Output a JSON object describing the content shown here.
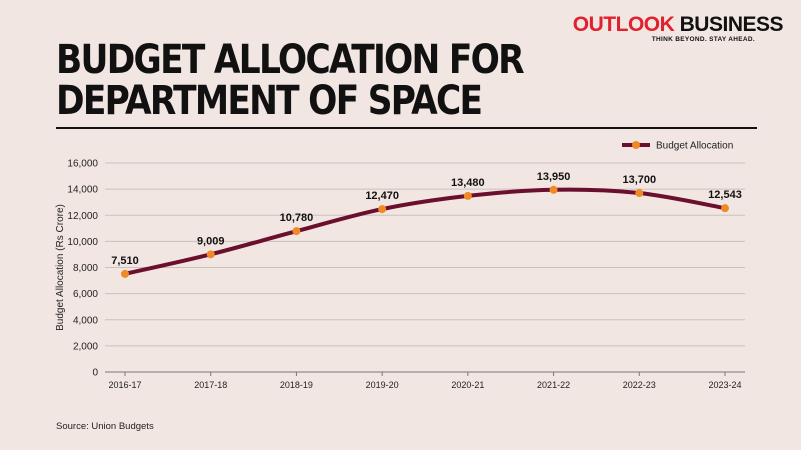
{
  "brand": {
    "name_part1": "OUTLOOK",
    "name_part2": "BUSINESS",
    "tagline": "THINK BEYOND. STAY AHEAD."
  },
  "title_line1": "BUDGET ALLOCATION FOR",
  "title_line2": "DEPARTMENT OF SPACE",
  "source": "Source: Union Budgets",
  "colors": {
    "line": "#6b0f2e",
    "marker": "#f08a24",
    "background": "#f2e6e2",
    "brand_red": "#e0212e"
  },
  "chart_data": {
    "type": "line",
    "categories": [
      "2016-17",
      "2017-18",
      "2018-19",
      "2019-20",
      "2020-21",
      "2021-22",
      "2022-23",
      "2023-24"
    ],
    "series": [
      {
        "name": "Budget Allocation",
        "values": [
          7510,
          9009,
          10780,
          12470,
          13480,
          13950,
          13700,
          12543
        ],
        "labels": [
          "7,510",
          "9,009",
          "10,780",
          "12,470",
          "13,480",
          "13,950",
          "13,700",
          "12,543"
        ]
      }
    ],
    "ylabel": "Budget Allocation (Rs Crore)",
    "xlabel": "",
    "ylim": [
      0,
      16000
    ],
    "yticks": [
      0,
      2000,
      4000,
      6000,
      8000,
      10000,
      12000,
      14000,
      16000
    ],
    "ytick_labels": [
      "0",
      "2,000",
      "4,000",
      "6,000",
      "8,000",
      "10,000",
      "12,000",
      "14,000",
      "16,000"
    ],
    "grid": true,
    "legend_position": "top-right"
  }
}
